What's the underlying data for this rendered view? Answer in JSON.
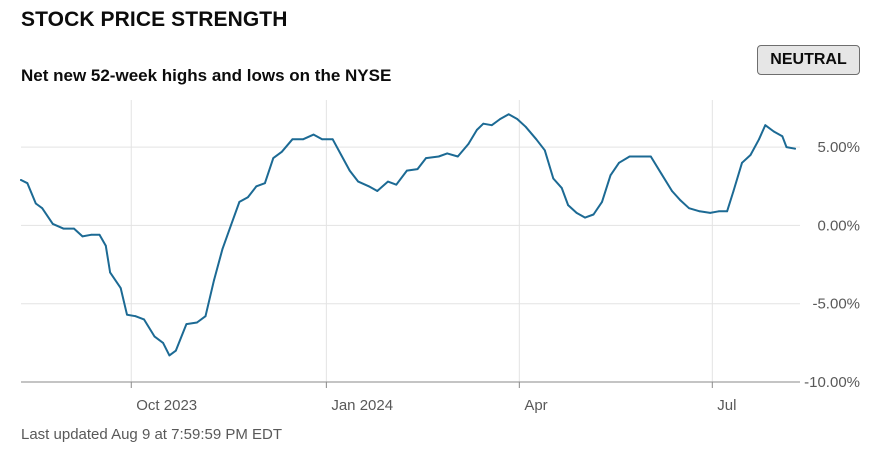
{
  "title": "STOCK PRICE STRENGTH",
  "subtitle": "Net new 52-week highs and lows on the NYSE",
  "status_badge": "NEUTRAL",
  "footer": "Last updated Aug 9 at 7:59:59 PM EDT",
  "colors": {
    "line": "#1c6a94",
    "grid": "#e3e3e3",
    "axis": "#8a8a8a",
    "text": "#595959"
  },
  "chart_data": {
    "type": "line",
    "title": "Net new 52-week highs and lows on the NYSE",
    "xlabel": "",
    "ylabel": "",
    "ylim": [
      -10,
      7.5
    ],
    "grid": true,
    "y_ticks": [
      {
        "value": 5,
        "label": "5.00%"
      },
      {
        "value": 0,
        "label": "0.00%"
      },
      {
        "value": -5,
        "label": "-5.00%"
      },
      {
        "value": -10,
        "label": "-10.00%"
      }
    ],
    "x_ticks": [
      {
        "date": "2023-10-01",
        "label": "Oct 2023"
      },
      {
        "date": "2024-01-01",
        "label": "Jan 2024"
      },
      {
        "date": "2024-04-01",
        "label": "Apr"
      },
      {
        "date": "2024-07-01",
        "label": "Jul"
      }
    ],
    "xlim": [
      "2023-08-10",
      "2024-08-09"
    ],
    "series": [
      {
        "points": [
          [
            "2023-08-10",
            2.9
          ],
          [
            "2023-08-13",
            2.7
          ],
          [
            "2023-08-17",
            1.4
          ],
          [
            "2023-08-20",
            1.1
          ],
          [
            "2023-08-25",
            0.1
          ],
          [
            "2023-08-30",
            -0.2
          ],
          [
            "2023-09-04",
            -0.2
          ],
          [
            "2023-09-08",
            -0.7
          ],
          [
            "2023-09-12",
            -0.6
          ],
          [
            "2023-09-16",
            -0.6
          ],
          [
            "2023-09-19",
            -1.3
          ],
          [
            "2023-09-21",
            -3.0
          ],
          [
            "2023-09-26",
            -4.0
          ],
          [
            "2023-09-29",
            -5.7
          ],
          [
            "2023-10-03",
            -5.8
          ],
          [
            "2023-10-07",
            -6.0
          ],
          [
            "2023-10-12",
            -7.1
          ],
          [
            "2023-10-16",
            -7.5
          ],
          [
            "2023-10-19",
            -8.3
          ],
          [
            "2023-10-22",
            -8.0
          ],
          [
            "2023-10-27",
            -6.3
          ],
          [
            "2023-11-01",
            -6.2
          ],
          [
            "2023-11-05",
            -5.8
          ],
          [
            "2023-11-09",
            -3.5
          ],
          [
            "2023-11-13",
            -1.5
          ],
          [
            "2023-11-17",
            0.0
          ],
          [
            "2023-11-21",
            1.5
          ],
          [
            "2023-11-25",
            1.8
          ],
          [
            "2023-11-29",
            2.5
          ],
          [
            "2023-12-03",
            2.7
          ],
          [
            "2023-12-07",
            4.3
          ],
          [
            "2023-12-11",
            4.7
          ],
          [
            "2023-12-16",
            5.5
          ],
          [
            "2023-12-21",
            5.5
          ],
          [
            "2023-12-26",
            5.8
          ],
          [
            "2023-12-30",
            5.5
          ],
          [
            "2024-01-04",
            5.5
          ],
          [
            "2024-01-08",
            4.5
          ],
          [
            "2024-01-12",
            3.5
          ],
          [
            "2024-01-16",
            2.8
          ],
          [
            "2024-01-21",
            2.5
          ],
          [
            "2024-01-25",
            2.2
          ],
          [
            "2024-01-30",
            2.8
          ],
          [
            "2024-02-03",
            2.6
          ],
          [
            "2024-02-08",
            3.5
          ],
          [
            "2024-02-13",
            3.6
          ],
          [
            "2024-02-17",
            4.3
          ],
          [
            "2024-02-23",
            4.4
          ],
          [
            "2024-02-27",
            4.6
          ],
          [
            "2024-03-03",
            4.4
          ],
          [
            "2024-03-08",
            5.2
          ],
          [
            "2024-03-12",
            6.1
          ],
          [
            "2024-03-15",
            6.5
          ],
          [
            "2024-03-19",
            6.4
          ],
          [
            "2024-03-23",
            6.8
          ],
          [
            "2024-03-27",
            7.1
          ],
          [
            "2024-03-31",
            6.8
          ],
          [
            "2024-04-04",
            6.3
          ],
          [
            "2024-04-09",
            5.5
          ],
          [
            "2024-04-13",
            4.8
          ],
          [
            "2024-04-17",
            3.0
          ],
          [
            "2024-04-21",
            2.4
          ],
          [
            "2024-04-24",
            1.3
          ],
          [
            "2024-04-28",
            0.8
          ],
          [
            "2024-05-02",
            0.5
          ],
          [
            "2024-05-06",
            0.7
          ],
          [
            "2024-05-10",
            1.5
          ],
          [
            "2024-05-14",
            3.2
          ],
          [
            "2024-05-18",
            4.0
          ],
          [
            "2024-05-23",
            4.4
          ],
          [
            "2024-05-28",
            4.4
          ],
          [
            "2024-06-02",
            4.4
          ],
          [
            "2024-06-07",
            3.3
          ],
          [
            "2024-06-12",
            2.2
          ],
          [
            "2024-06-16",
            1.6
          ],
          [
            "2024-06-20",
            1.1
          ],
          [
            "2024-06-25",
            0.9
          ],
          [
            "2024-06-30",
            0.8
          ],
          [
            "2024-07-04",
            0.9
          ],
          [
            "2024-07-08",
            0.9
          ],
          [
            "2024-07-11",
            2.2
          ],
          [
            "2024-07-15",
            4.0
          ],
          [
            "2024-07-19",
            4.5
          ],
          [
            "2024-07-23",
            5.5
          ],
          [
            "2024-07-26",
            6.4
          ],
          [
            "2024-07-30",
            6.0
          ],
          [
            "2024-08-03",
            5.7
          ],
          [
            "2024-08-05",
            5.0
          ],
          [
            "2024-08-09",
            4.9
          ]
        ]
      }
    ]
  }
}
